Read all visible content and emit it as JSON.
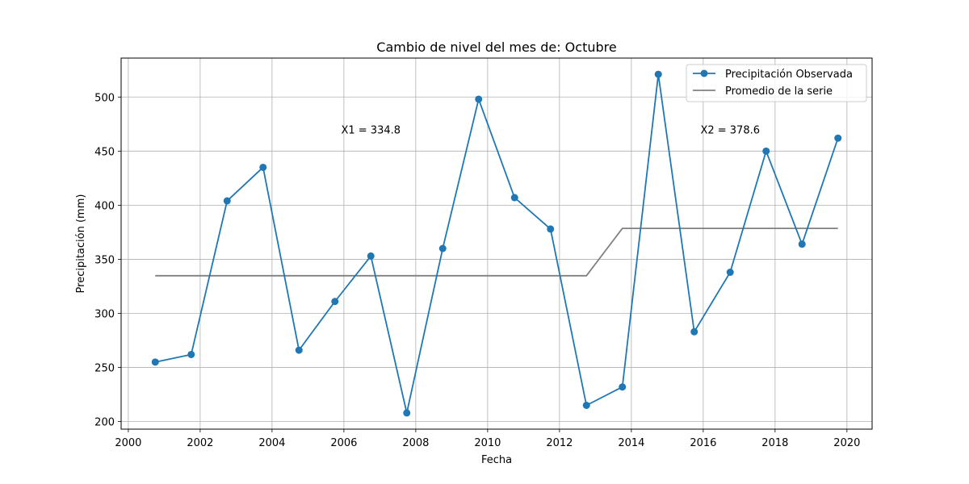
{
  "chart_data": {
    "type": "line",
    "title": "Cambio de nivel del mes de: Octubre",
    "xlabel": "Fecha",
    "ylabel": "Precipitación (mm)",
    "xlim": [
      1999.8,
      2020.7
    ],
    "ylim": [
      193,
      536
    ],
    "xticks": [
      2000,
      2002,
      2004,
      2006,
      2008,
      2010,
      2012,
      2014,
      2016,
      2018,
      2020
    ],
    "xtick_labels": [
      "2000",
      "2002",
      "2004",
      "2006",
      "2008",
      "2010",
      "2012",
      "2014",
      "2016",
      "2018",
      "2020"
    ],
    "yticks": [
      200,
      250,
      300,
      350,
      400,
      450,
      500
    ],
    "ytick_labels": [
      "200",
      "250",
      "300",
      "350",
      "400",
      "450",
      "500"
    ],
    "grid": true,
    "legend_position": "top-right",
    "series": [
      {
        "name": "Precipitación Observada",
        "color": "#1f77b4",
        "marker": "circle",
        "x": [
          2000.75,
          2001.75,
          2002.75,
          2003.75,
          2004.75,
          2005.75,
          2006.75,
          2007.75,
          2008.75,
          2009.75,
          2010.75,
          2011.75,
          2012.75,
          2013.75,
          2014.75,
          2015.75,
          2016.75,
          2017.75,
          2018.75,
          2019.75
        ],
        "values": [
          255,
          262,
          404,
          435,
          266,
          311,
          353,
          208,
          360,
          498,
          407,
          378,
          215,
          232,
          521,
          283,
          338,
          450,
          364,
          462
        ]
      },
      {
        "name": "Promedio de la serie",
        "color": "#808080",
        "marker": "none",
        "x": [
          2000.75,
          2012.75,
          2013.75,
          2019.75
        ],
        "values": [
          334.8,
          334.8,
          378.6,
          378.6
        ]
      }
    ],
    "annotations": [
      {
        "text": "X1 = 334.8",
        "x": 2006.75,
        "y": 470
      },
      {
        "text": "X2 = 378.6",
        "x": 2016.75,
        "y": 470
      }
    ]
  }
}
